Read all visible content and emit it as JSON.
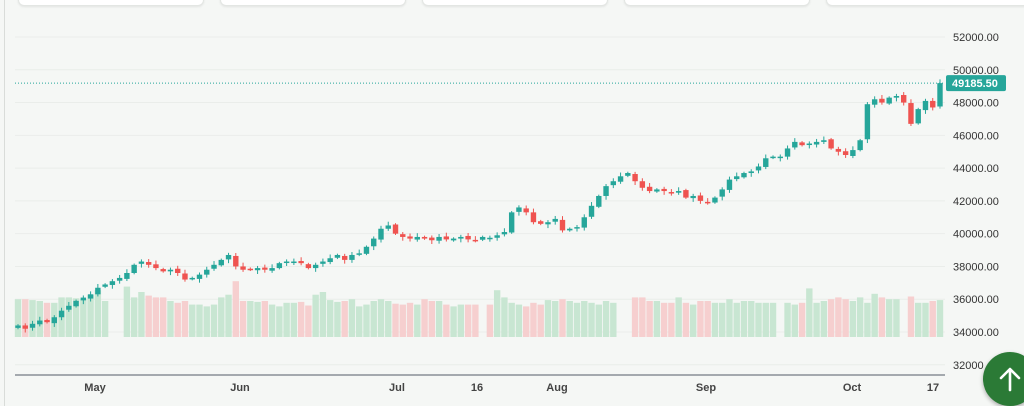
{
  "chart_data": {
    "type": "candlestick",
    "y_ticks": [
      "52000.00",
      "50000.00",
      "48000.00",
      "46000.00",
      "44000.00",
      "42000.00",
      "40000.00",
      "38000.00",
      "36000.00",
      "34000.00",
      "32000"
    ],
    "ylim": [
      32000,
      52000
    ],
    "x_ticks": [
      "May",
      "Jun",
      "Jul",
      "16",
      "Aug",
      "Sep",
      "Oct",
      "17"
    ],
    "last_price_label": "49185.50",
    "last_price": 49185.5,
    "grid": true,
    "colors": {
      "up": "#26a69a",
      "down": "#ef5350",
      "up_volume": "#c8e6d2",
      "down_volume": "#f6cfcf",
      "price_label": "#26a69a",
      "fab": "#2b7a36"
    },
    "closes": [
      34400,
      34200,
      34500,
      34700,
      34600,
      34900,
      35300,
      35600,
      35900,
      36100,
      36300,
      36700,
      36900,
      37100,
      37300,
      37600,
      38100,
      38300,
      38100,
      37900,
      37700,
      37800,
      37600,
      37200,
      37300,
      37500,
      37800,
      38100,
      38400,
      38700,
      38000,
      37800,
      37800,
      37900,
      37800,
      37900,
      38200,
      38300,
      38300,
      38200,
      37900,
      38100,
      38300,
      38500,
      38700,
      38400,
      38700,
      38800,
      39200,
      39700,
      40300,
      40500,
      40000,
      39800,
      39700,
      39800,
      39700,
      39600,
      39800,
      39650,
      39700,
      39800,
      39650,
      39600,
      39800,
      39750,
      39900,
      40100,
      41300,
      41600,
      41300,
      40700,
      40600,
      40700,
      40900,
      40200,
      40300,
      40400,
      41000,
      41700,
      42300,
      42900,
      43200,
      43500,
      43700,
      43200,
      42800,
      42600,
      42700,
      42600,
      42500,
      42600,
      42200,
      42300,
      42000,
      41900,
      42200,
      42700,
      43300,
      43500,
      43700,
      43800,
      44100,
      44600,
      44700,
      44700,
      45200,
      45600,
      45400,
      45500,
      45600,
      45700,
      45200,
      45000,
      44800,
      45100,
      45700,
      47900,
      48200,
      48000,
      48300,
      48400,
      48000,
      46700,
      47600,
      48100,
      47700,
      49185.5
    ],
    "volumes": [
      42,
      42,
      41,
      40,
      38,
      38,
      44,
      44,
      43,
      42,
      47,
      52,
      40,
      0,
      0,
      56,
      44,
      50,
      46,
      44,
      44,
      40,
      38,
      40,
      36,
      36,
      34,
      36,
      44,
      47,
      62,
      40,
      40,
      39,
      40,
      36,
      34,
      38,
      38,
      39,
      35,
      47,
      50,
      41,
      39,
      40,
      42,
      34,
      36,
      40,
      42,
      40,
      37,
      36,
      38,
      36,
      42,
      40,
      40,
      36,
      34,
      36,
      36,
      36,
      0,
      36,
      52,
      44,
      38,
      36,
      34,
      38,
      36,
      41,
      40,
      42,
      40,
      38,
      40,
      38,
      36,
      40,
      38,
      0,
      0,
      44,
      44,
      40,
      40,
      38,
      38,
      44,
      38,
      36,
      40,
      40,
      38,
      38,
      42,
      38,
      40,
      40,
      38,
      38,
      38,
      0,
      38,
      36,
      38,
      54,
      38,
      40,
      42,
      44,
      42,
      40,
      44,
      38,
      48,
      44,
      42,
      42,
      0,
      45,
      38,
      38,
      40,
      41
    ]
  },
  "fab": {
    "icon": "arrow-up-icon"
  }
}
